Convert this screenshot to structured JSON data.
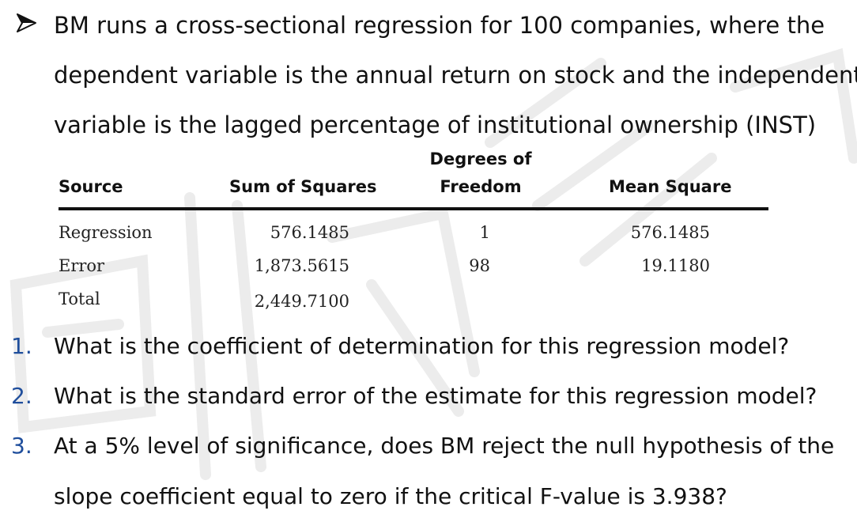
{
  "intro": {
    "line1": "BM runs a cross-sectional regression for 100 companies, where the",
    "line2": "dependent variable is the annual return on stock and the independent",
    "line3": "variable is the lagged percentage of institutional ownership (INST)"
  },
  "table": {
    "headers": {
      "source": "Source",
      "sum_of_squares": "Sum of Squares",
      "df_line1": "Degrees of",
      "df_line2": "Freedom",
      "mean_square": "Mean Square"
    },
    "rows": [
      {
        "source": "Regression",
        "ss": "576.1485",
        "df": "1",
        "ms": "576.1485"
      },
      {
        "source": "Error",
        "ss": "1,873.5615",
        "df": "98",
        "ms": "19.1180"
      },
      {
        "source": "Total",
        "ss": "2,449.7100",
        "df": "",
        "ms": ""
      }
    ]
  },
  "questions": [
    {
      "number": "1.",
      "text": "What is the coefficient of determination for this regression model?"
    },
    {
      "number": "2.",
      "text": "What is the standard error of the estimate for this regression model?"
    },
    {
      "number": "3.",
      "text": "At a 5% level of significance, does BM reject the null hypothesis of the"
    }
  ],
  "question3_continuation": "slope coefficient equal to zero if the critical F-value is 3.938?",
  "colors": {
    "text": "#111111",
    "number_blue": "#1f4e9c",
    "watermark": "#e9e9e9"
  }
}
